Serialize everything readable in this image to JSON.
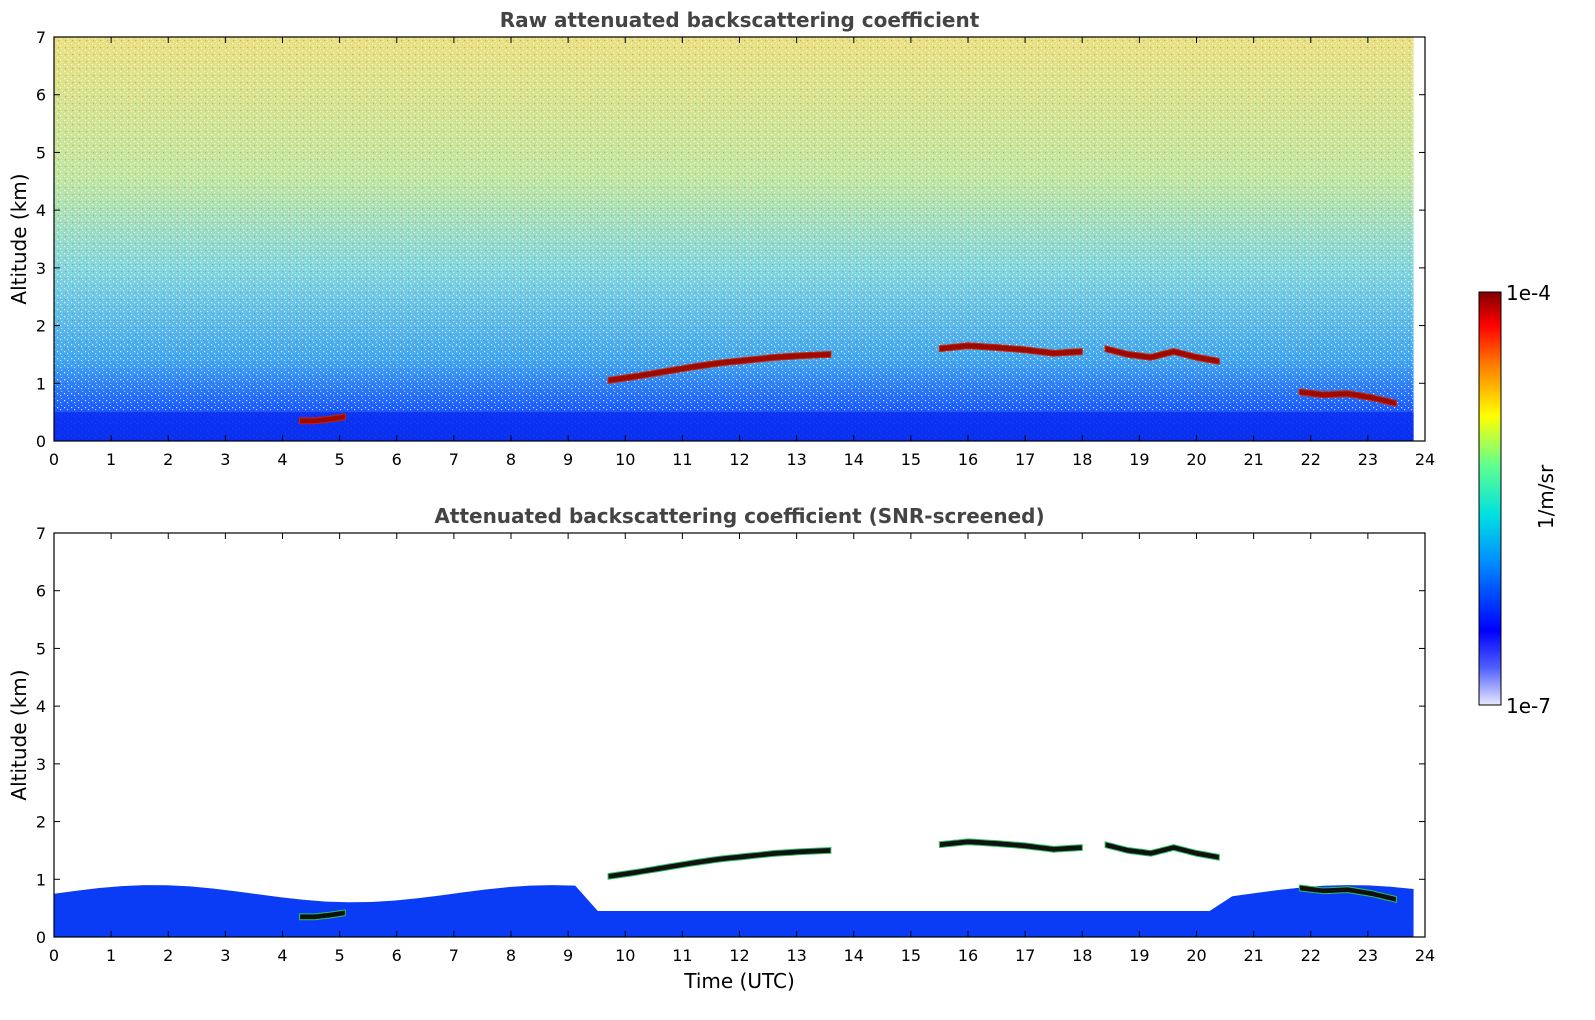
{
  "chart_data": [
    {
      "type": "heatmap",
      "title": "Raw attenuated backscattering coefficient",
      "xlabel": "",
      "ylabel": "Altitude (km)",
      "xlim": [
        0,
        24
      ],
      "ylim": [
        0,
        7
      ],
      "xticks": [
        "0",
        "1",
        "2",
        "3",
        "4",
        "5",
        "6",
        "7",
        "8",
        "9",
        "10",
        "11",
        "12",
        "13",
        "14",
        "15",
        "16",
        "17",
        "18",
        "19",
        "20",
        "21",
        "22",
        "23",
        "24"
      ],
      "yticks": [
        "0",
        "1",
        "2",
        "3",
        "4",
        "5",
        "6",
        "7"
      ],
      "screened": false,
      "data_end_hour": 23.8,
      "cloud_layers": [
        {
          "start_hour": 4.3,
          "end_hour": 5.1,
          "altitude_km": [
            0.35,
            0.35,
            0.38,
            0.42
          ]
        },
        {
          "start_hour": 9.7,
          "end_hour": 13.6,
          "altitude_km": [
            1.05,
            1.12,
            1.2,
            1.28,
            1.35,
            1.4,
            1.45,
            1.48,
            1.5
          ]
        },
        {
          "start_hour": 15.5,
          "end_hour": 18.0,
          "altitude_km": [
            1.6,
            1.65,
            1.62,
            1.58,
            1.52,
            1.55
          ]
        },
        {
          "start_hour": 18.4,
          "end_hour": 20.4,
          "altitude_km": [
            1.6,
            1.5,
            1.45,
            1.55,
            1.45,
            1.38
          ]
        },
        {
          "start_hour": 21.8,
          "end_hour": 23.5,
          "altitude_km": [
            0.85,
            0.8,
            0.82,
            0.75,
            0.65
          ]
        }
      ]
    },
    {
      "type": "heatmap",
      "title": "Attenuated backscattering coefficient (SNR-screened)",
      "xlabel": "Time (UTC)",
      "ylabel": "Altitude (km)",
      "xlim": [
        0,
        24
      ],
      "ylim": [
        0,
        7
      ],
      "xticks": [
        "0",
        "1",
        "2",
        "3",
        "4",
        "5",
        "6",
        "7",
        "8",
        "9",
        "10",
        "11",
        "12",
        "13",
        "14",
        "15",
        "16",
        "17",
        "18",
        "19",
        "20",
        "21",
        "22",
        "23",
        "24"
      ],
      "yticks": [
        "0",
        "1",
        "2",
        "3",
        "4",
        "5",
        "6",
        "7"
      ],
      "screened": true,
      "data_end_hour": 23.8,
      "cloud_layers": [
        {
          "start_hour": 4.3,
          "end_hour": 5.1,
          "altitude_km": [
            0.35,
            0.35,
            0.38,
            0.42
          ]
        },
        {
          "start_hour": 9.7,
          "end_hour": 13.6,
          "altitude_km": [
            1.05,
            1.12,
            1.2,
            1.28,
            1.35,
            1.4,
            1.45,
            1.48,
            1.5
          ]
        },
        {
          "start_hour": 15.5,
          "end_hour": 18.0,
          "altitude_km": [
            1.6,
            1.65,
            1.62,
            1.58,
            1.52,
            1.55
          ]
        },
        {
          "start_hour": 18.4,
          "end_hour": 20.4,
          "altitude_km": [
            1.6,
            1.5,
            1.45,
            1.55,
            1.45,
            1.38
          ]
        },
        {
          "start_hour": 21.8,
          "end_hour": 23.5,
          "altitude_km": [
            0.85,
            0.8,
            0.82,
            0.75,
            0.65
          ]
        }
      ]
    }
  ],
  "colorbar": {
    "label": "1/m/sr",
    "max_label": "1e-4",
    "min_label": "1e-7",
    "scale": "log",
    "colormap": "jet",
    "low_color": "#e6e6ff",
    "high_color": "#800000"
  }
}
